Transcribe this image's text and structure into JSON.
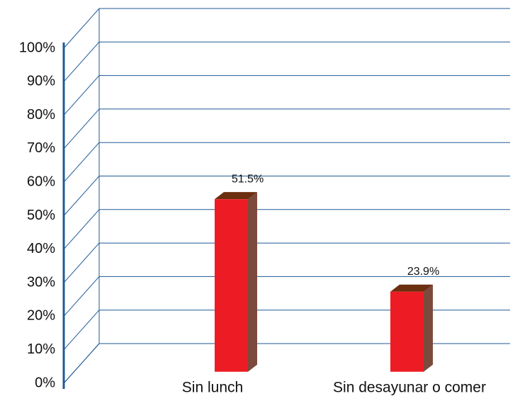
{
  "chart_data": {
    "type": "bar3d",
    "categories": [
      "Sin lunch",
      "Sin desayunar o comer"
    ],
    "values": [
      51.5,
      23.9
    ],
    "value_labels": [
      "51.5%",
      "23.9%"
    ],
    "color": "#ed1c24",
    "ylim": [
      0,
      100
    ],
    "yticks": [
      {
        "value": 0,
        "label": "0%"
      },
      {
        "value": 10,
        "label": "10%"
      },
      {
        "value": 20,
        "label": "20%"
      },
      {
        "value": 30,
        "label": "30%"
      },
      {
        "value": 40,
        "label": "40%"
      },
      {
        "value": 50,
        "label": "50%"
      },
      {
        "value": 60,
        "label": "60%"
      },
      {
        "value": 70,
        "label": "70%"
      },
      {
        "value": 80,
        "label": "80%"
      },
      {
        "value": 90,
        "label": "90%"
      },
      {
        "value": 100,
        "label": "100%"
      }
    ],
    "grid": true
  }
}
